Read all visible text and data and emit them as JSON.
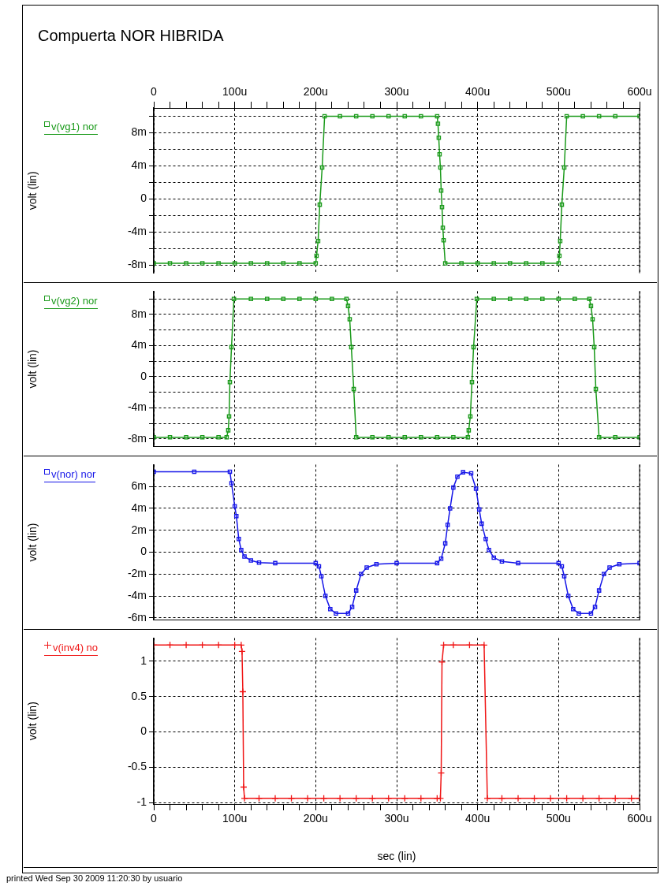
{
  "chart_data": [
    {
      "type": "line",
      "title": "Compuerta NOR HIBRIDA",
      "ylabel": "volt (lin)",
      "grid": true,
      "legend": "left",
      "marker": "square",
      "xlim": [
        0,
        600
      ],
      "xticks": [
        0,
        {
          "value": 20,
          "label": null
        },
        {
          "value": 40,
          "label": null
        },
        {
          "value": 60,
          "label": null
        },
        {
          "value": 80,
          "label": null
        },
        {
          "value": 100,
          "label": "100u"
        },
        {
          "value": 120,
          "label": null
        },
        {
          "value": 140,
          "label": null
        },
        {
          "value": 160,
          "label": null
        },
        {
          "value": 180,
          "label": null
        },
        {
          "value": 200,
          "label": "200u"
        },
        {
          "value": 220,
          "label": null
        },
        {
          "value": 240,
          "label": null
        },
        {
          "value": 260,
          "label": null
        },
        {
          "value": 280,
          "label": null
        },
        {
          "value": 300,
          "label": "300u"
        },
        {
          "value": 320,
          "label": null
        },
        {
          "value": 340,
          "label": null
        },
        {
          "value": 360,
          "label": null
        },
        {
          "value": 380,
          "label": null
        },
        {
          "value": 400,
          "label": "400u"
        },
        {
          "value": 420,
          "label": null
        },
        {
          "value": 440,
          "label": null
        },
        {
          "value": 460,
          "label": null
        },
        {
          "value": 480,
          "label": null
        },
        {
          "value": 500,
          "label": "500u"
        },
        {
          "value": 520,
          "label": null
        },
        {
          "value": 540,
          "label": null
        },
        {
          "value": 560,
          "label": null
        },
        {
          "value": 580,
          "label": null
        },
        {
          "value": 600,
          "label": "600u"
        }
      ],
      "ylim": [
        -9,
        11
      ],
      "yticks": [
        {
          "value": 10,
          "label": null
        },
        {
          "value": 8,
          "label": "8m"
        },
        {
          "value": 6,
          "label": null
        },
        {
          "value": 4,
          "label": "4m"
        },
        {
          "value": 2,
          "label": null
        },
        0,
        {
          "value": -2,
          "label": null
        },
        {
          "value": -4,
          "label": "-4m"
        },
        {
          "value": -6,
          "label": null
        },
        {
          "value": -8,
          "label": "-8m"
        }
      ],
      "series": [
        {
          "name": "v(vg1) nor",
          "color": "#1a9a1a",
          "x": [
            0,
            20,
            40,
            60,
            80,
            100,
            120,
            140,
            160,
            180,
            200,
            201,
            203,
            205,
            208,
            211,
            230,
            250,
            270,
            290,
            310,
            330,
            350,
            351,
            352,
            353,
            354,
            355,
            356,
            357,
            358,
            360,
            380,
            400,
            420,
            440,
            460,
            480,
            500,
            501,
            502,
            504,
            507,
            510,
            530,
            550,
            570,
            600
          ],
          "values": [
            -7.8,
            -7.8,
            -7.8,
            -7.8,
            -7.8,
            -7.8,
            -7.8,
            -7.8,
            -7.8,
            -7.8,
            -7.8,
            -6.9,
            -5.1,
            -0.7,
            3.8,
            10,
            10,
            10,
            10,
            10,
            10,
            10,
            10,
            9.1,
            7.4,
            5.4,
            3.8,
            1,
            -1,
            -3.5,
            -5,
            -7.8,
            -7.8,
            -7.8,
            -7.8,
            -7.8,
            -7.8,
            -7.8,
            -7.8,
            -6.9,
            -5.1,
            -0.7,
            3.8,
            10,
            10,
            10,
            10,
            10
          ]
        }
      ]
    },
    {
      "type": "line",
      "ylabel": "volt (lin)",
      "grid": true,
      "legend": "left",
      "marker": "square",
      "tick_labels": "y",
      "xlim": [
        0,
        600
      ],
      "xticks": [
        0,
        100,
        200,
        300,
        400,
        500,
        600
      ],
      "ylim": [
        -9,
        11
      ],
      "yticks": [
        {
          "value": 10,
          "label": null
        },
        {
          "value": 8,
          "label": "8m"
        },
        {
          "value": 6,
          "label": null
        },
        {
          "value": 4,
          "label": "4m"
        },
        {
          "value": 2,
          "label": null
        },
        0,
        {
          "value": -2,
          "label": null
        },
        {
          "value": -4,
          "label": "-4m"
        },
        {
          "value": -6,
          "label": null
        },
        {
          "value": -8,
          "label": "-8m"
        }
      ],
      "series": [
        {
          "name": "v(vg2) nor",
          "color": "#1a9a1a",
          "x": [
            0,
            20,
            40,
            60,
            80,
            90,
            92,
            93,
            94,
            96,
            99,
            120,
            140,
            160,
            180,
            200,
            220,
            238,
            240,
            242,
            244,
            247,
            250,
            270,
            290,
            310,
            330,
            350,
            370,
            388,
            389,
            391,
            393,
            395,
            399,
            420,
            440,
            460,
            480,
            500,
            520,
            538,
            540,
            542,
            544,
            546,
            550,
            570,
            600
          ],
          "values": [
            -7.8,
            -7.8,
            -7.8,
            -7.8,
            -7.8,
            -7.8,
            -6.9,
            -5.1,
            -0.7,
            3.8,
            10,
            10,
            10,
            10,
            10,
            10,
            10,
            10,
            9.1,
            7.4,
            3.8,
            -1.6,
            -7.8,
            -7.8,
            -7.8,
            -7.8,
            -7.8,
            -7.8,
            -7.8,
            -7.8,
            -6.9,
            -5.1,
            -0.7,
            3.8,
            10,
            10,
            10,
            10,
            10,
            10,
            10,
            10,
            9.1,
            7.4,
            3.8,
            -1.6,
            -7.8,
            -7.8,
            -7.8
          ]
        }
      ]
    },
    {
      "type": "line",
      "ylabel": "volt (lin)",
      "grid": true,
      "legend": "left",
      "marker": "square",
      "tick_labels": "y",
      "xlim": [
        0,
        600
      ],
      "xticks": [
        0,
        100,
        200,
        300,
        400,
        500,
        600
      ],
      "ylim": [
        -6.2,
        8
      ],
      "yticks": [
        {
          "value": 6,
          "label": "6m"
        },
        {
          "value": 4,
          "label": "4m"
        },
        {
          "value": 2,
          "label": "2m"
        },
        0,
        {
          "value": -2,
          "label": "-2m"
        },
        {
          "value": -4,
          "label": "-4m"
        },
        {
          "value": -6,
          "label": "-6m"
        }
      ],
      "series": [
        {
          "name": "v(nor) nor",
          "color": "#1515e8",
          "x": [
            0,
            50,
            94,
            96,
            100,
            102,
            105,
            108,
            112,
            120,
            130,
            150,
            200,
            204,
            207,
            212,
            218,
            225,
            240,
            245,
            250,
            256,
            263,
            275,
            300,
            350,
            355,
            360,
            363,
            366,
            370,
            375,
            382,
            392,
            398,
            402,
            405,
            410,
            414,
            420,
            430,
            450,
            500,
            504,
            507,
            512,
            518,
            525,
            540,
            545,
            550,
            556,
            563,
            575,
            600
          ],
          "values": [
            7.35,
            7.35,
            7.35,
            6.3,
            4.2,
            3.3,
            1.2,
            0.2,
            -0.4,
            -0.75,
            -0.95,
            -1,
            -1,
            -1.3,
            -2.2,
            -4,
            -5.2,
            -5.6,
            -5.6,
            -5,
            -3.5,
            -2,
            -1.4,
            -1.1,
            -1,
            -1,
            -0.6,
            0.8,
            2.5,
            4,
            5.9,
            6.9,
            7.3,
            7.2,
            5.8,
            3.9,
            2.6,
            1.2,
            0.2,
            -0.5,
            -0.85,
            -1,
            -1,
            -1.3,
            -2.2,
            -4,
            -5.2,
            -5.6,
            -5.6,
            -5,
            -3.5,
            -2,
            -1.4,
            -1.1,
            -1
          ]
        }
      ]
    },
    {
      "type": "line",
      "xlabel": "sec (lin)",
      "ylabel": "volt (lin)",
      "grid": true,
      "legend": "left",
      "marker": "cross",
      "annotations": [
        "printed Wed Sep 30 2009 11:20:30 by usuario"
      ],
      "xlim": [
        0,
        600
      ],
      "xticks": [
        0,
        {
          "value": 20,
          "label": null
        },
        {
          "value": 40,
          "label": null
        },
        {
          "value": 60,
          "label": null
        },
        {
          "value": 80,
          "label": null
        },
        {
          "value": 100,
          "label": "100u"
        },
        {
          "value": 120,
          "label": null
        },
        {
          "value": 140,
          "label": null
        },
        {
          "value": 160,
          "label": null
        },
        {
          "value": 180,
          "label": null
        },
        {
          "value": 200,
          "label": "200u"
        },
        {
          "value": 220,
          "label": null
        },
        {
          "value": 240,
          "label": null
        },
        {
          "value": 260,
          "label": null
        },
        {
          "value": 280,
          "label": null
        },
        {
          "value": 300,
          "label": "300u"
        },
        {
          "value": 320,
          "label": null
        },
        {
          "value": 340,
          "label": null
        },
        {
          "value": 360,
          "label": null
        },
        {
          "value": 380,
          "label": null
        },
        {
          "value": 400,
          "label": "400u"
        },
        {
          "value": 420,
          "label": null
        },
        {
          "value": 440,
          "label": null
        },
        {
          "value": 460,
          "label": null
        },
        {
          "value": 480,
          "label": null
        },
        {
          "value": 500,
          "label": "500u"
        },
        {
          "value": 520,
          "label": null
        },
        {
          "value": 540,
          "label": null
        },
        {
          "value": 560,
          "label": null
        },
        {
          "value": 580,
          "label": null
        },
        {
          "value": 600,
          "label": "600u"
        }
      ],
      "ylim": [
        -1.02,
        1.33
      ],
      "yticks": [
        1,
        0.5,
        0,
        -0.5,
        -1
      ],
      "series": [
        {
          "name": "v(inv4) no",
          "color": "#f01515",
          "x": [
            0,
            20,
            40,
            60,
            80,
            100,
            108,
            109,
            110,
            111,
            112,
            130,
            150,
            170,
            190,
            210,
            230,
            250,
            270,
            290,
            310,
            330,
            350,
            354,
            355,
            356,
            358,
            370,
            390,
            408,
            412,
            430,
            450,
            470,
            490,
            510,
            530,
            550,
            570,
            590,
            600
          ],
          "values": [
            1.23,
            1.23,
            1.23,
            1.23,
            1.23,
            1.23,
            1.23,
            1.14,
            0.57,
            -0.78,
            -0.94,
            -0.94,
            -0.94,
            -0.94,
            -0.94,
            -0.94,
            -0.94,
            -0.94,
            -0.94,
            -0.94,
            -0.94,
            -0.94,
            -0.94,
            -0.94,
            -0.58,
            0.99,
            1.23,
            1.23,
            1.23,
            1.23,
            -0.94,
            -0.94,
            -0.94,
            -0.94,
            -0.94,
            -0.94,
            -0.94,
            -0.94,
            -0.94,
            -0.94,
            -0.94
          ]
        }
      ]
    }
  ]
}
